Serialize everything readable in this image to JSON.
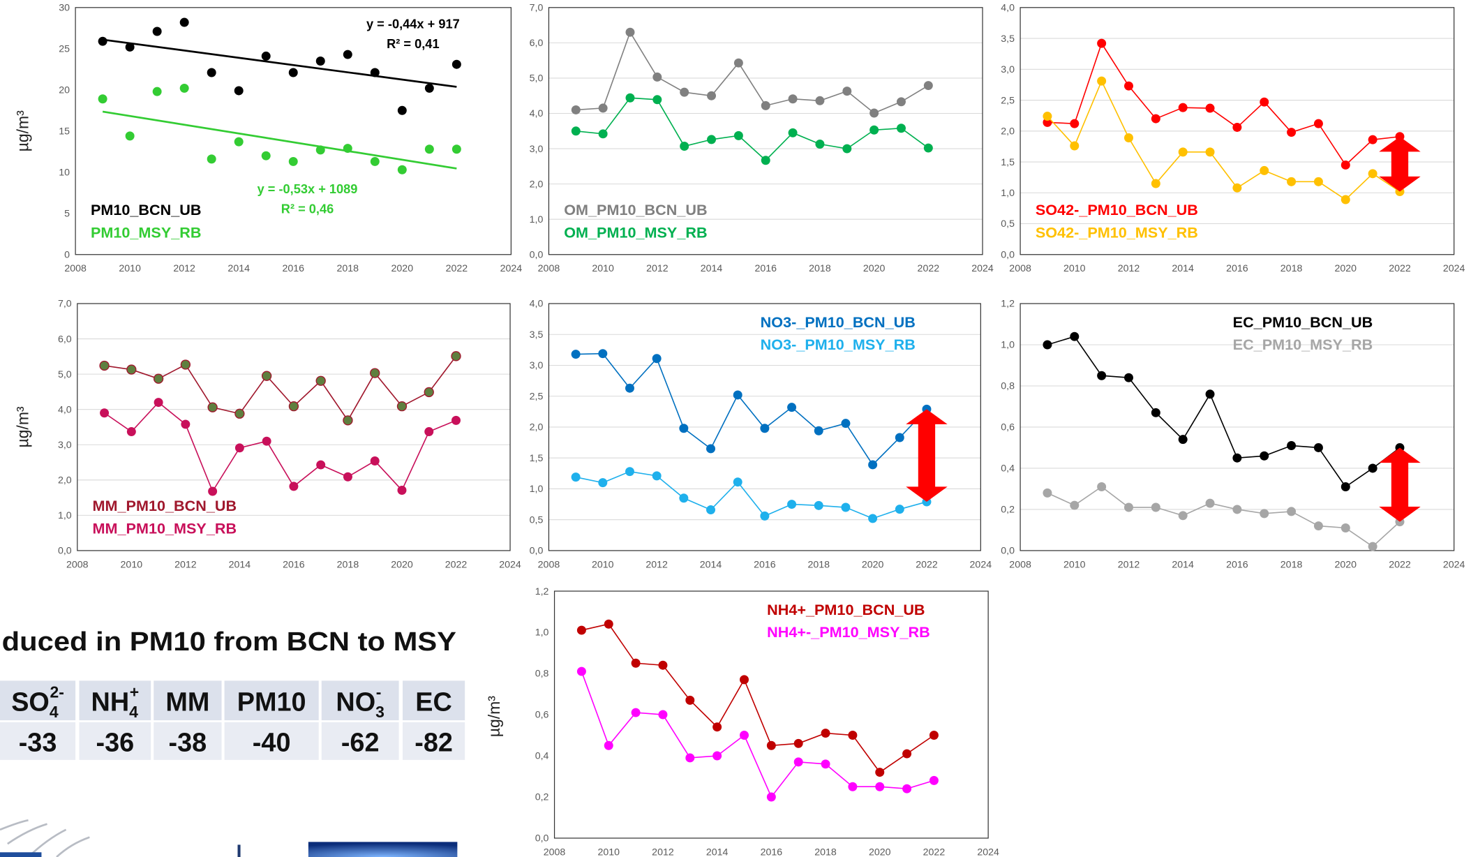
{
  "chart_data": [
    {
      "type": "scatter",
      "y_label": "µg/m³",
      "trendline": true,
      "grid": false,
      "legend_position": "lower left",
      "x": [
        2009,
        2010,
        2011,
        2012,
        2013,
        2014,
        2015,
        2016,
        2017,
        2018,
        2019,
        2020,
        2021,
        2022
      ],
      "xlim": [
        2008,
        2024
      ],
      "xticks": [
        2008,
        2010,
        2012,
        2014,
        2016,
        2018,
        2020,
        2022,
        2024
      ],
      "ylim": [
        0,
        30
      ],
      "yticks": [
        0,
        5,
        10,
        15,
        20,
        25,
        30
      ],
      "series": [
        {
          "name": "PM10_BCN_UB",
          "color": "#000000",
          "values": [
            25.9,
            25.2,
            27.1,
            28.2,
            22.1,
            19.9,
            24.1,
            22.1,
            23.5,
            24.3,
            22.1,
            17.5,
            20.2,
            23.1
          ]
        },
        {
          "name": "PM10_MSY_RB",
          "color": "#33cc33",
          "values": [
            18.9,
            14.4,
            19.8,
            20.2,
            11.6,
            13.7,
            12.0,
            11.3,
            12.7,
            12.9,
            11.3,
            10.3,
            12.8,
            12.8
          ]
        }
      ],
      "annotations": [
        {
          "text": "y = -0,44x + 917",
          "color": "#000000"
        },
        {
          "text": "R² = 0,41",
          "color": "#000000"
        },
        {
          "text": "y = -0,53x + 1089",
          "color": "#33cc33"
        },
        {
          "text": "R² = 0,46",
          "color": "#33cc33"
        }
      ]
    },
    {
      "type": "line",
      "grid": true,
      "legend_position": "lower left",
      "x": [
        2009,
        2010,
        2011,
        2012,
        2013,
        2014,
        2015,
        2016,
        2017,
        2018,
        2019,
        2020,
        2021,
        2022
      ],
      "xlim": [
        2008,
        2024
      ],
      "xticks": [
        2008,
        2010,
        2012,
        2014,
        2016,
        2018,
        2020,
        2022,
        2024
      ],
      "ylim": [
        0,
        7
      ],
      "yticks": [
        {
          "value": 0,
          "label": "0,0"
        },
        {
          "value": 1,
          "label": "1,0"
        },
        {
          "value": 2,
          "label": "2,0"
        },
        {
          "value": 3,
          "label": "3,0"
        },
        {
          "value": 4,
          "label": "4,0"
        },
        {
          "value": 5,
          "label": "5,0"
        },
        {
          "value": 6,
          "label": "6,0"
        },
        {
          "value": 7,
          "label": "7,0"
        }
      ],
      "series": [
        {
          "name": "OM_PM10_BCN_UB",
          "color": "#808080",
          "values": [
            4.1,
            4.15,
            6.3,
            5.03,
            4.6,
            4.5,
            5.43,
            4.22,
            4.41,
            4.36,
            4.63,
            4.01,
            4.33,
            4.79
          ]
        },
        {
          "name": "OM_PM10_MSY_RB",
          "color": "#00b050",
          "values": [
            3.5,
            3.42,
            4.44,
            4.39,
            3.07,
            3.26,
            3.37,
            2.67,
            3.45,
            3.13,
            3.0,
            3.53,
            3.58,
            3.02
          ]
        }
      ]
    },
    {
      "type": "line",
      "grid": true,
      "legend_position": "lower left",
      "arrow": true,
      "x": [
        2009,
        2010,
        2011,
        2012,
        2013,
        2014,
        2015,
        2016,
        2017,
        2018,
        2019,
        2020,
        2021,
        2022
      ],
      "xlim": [
        2008,
        2024
      ],
      "xticks": [
        2008,
        2010,
        2012,
        2014,
        2016,
        2018,
        2020,
        2022,
        2024
      ],
      "ylim": [
        0,
        4
      ],
      "yticks": [
        {
          "value": 0,
          "label": "0,0"
        },
        {
          "value": 0.5,
          "label": "0,5"
        },
        {
          "value": 1,
          "label": "1,0"
        },
        {
          "value": 1.5,
          "label": "1,5"
        },
        {
          "value": 2,
          "label": "2,0"
        },
        {
          "value": 2.5,
          "label": "2,5"
        },
        {
          "value": 3,
          "label": "3,0"
        },
        {
          "value": 3.5,
          "label": "3,5"
        },
        {
          "value": 4,
          "label": "4,0"
        }
      ],
      "series": [
        {
          "name": "SO42-_PM10_BCN_UB",
          "color": "#ff0000",
          "values": [
            2.14,
            2.12,
            3.42,
            2.73,
            2.2,
            2.38,
            2.37,
            2.06,
            2.47,
            1.98,
            2.12,
            1.45,
            1.86,
            1.91
          ]
        },
        {
          "name": "SO42-_PM10_MSY_RB",
          "color": "#ffc000",
          "values": [
            2.24,
            1.76,
            2.81,
            1.89,
            1.15,
            1.66,
            1.66,
            1.08,
            1.36,
            1.18,
            1.18,
            0.89,
            1.31,
            1.02
          ]
        }
      ]
    },
    {
      "type": "line",
      "y_label": "µg/m³",
      "grid": true,
      "legend_position": "lower left",
      "x": [
        2009,
        2010,
        2011,
        2012,
        2013,
        2014,
        2015,
        2016,
        2017,
        2018,
        2019,
        2020,
        2021,
        2022
      ],
      "xlim": [
        2008,
        2024
      ],
      "xticks": [
        2008,
        2010,
        2012,
        2014,
        2016,
        2018,
        2020,
        2022,
        2024
      ],
      "ylim": [
        0,
        7
      ],
      "yticks": [
        {
          "value": 0,
          "label": "0,0"
        },
        {
          "value": 1,
          "label": "1,0"
        },
        {
          "value": 2,
          "label": "2,0"
        },
        {
          "value": 3,
          "label": "3,0"
        },
        {
          "value": 4,
          "label": "4,0"
        },
        {
          "value": 5,
          "label": "5,0"
        },
        {
          "value": 6,
          "label": "6,0"
        },
        {
          "value": 7,
          "label": "7,0"
        }
      ],
      "series": [
        {
          "name": "MM_PM10_BCN_UB",
          "color": "#a0182d",
          "marker_color": "#5f7f3f",
          "values": [
            5.24,
            5.13,
            4.87,
            5.27,
            4.06,
            3.88,
            4.95,
            4.09,
            4.81,
            3.69,
            5.03,
            4.09,
            4.49,
            5.51
          ]
        },
        {
          "name": "MM_PM10_MSY_RB",
          "color": "#c8105a",
          "values": [
            3.9,
            3.37,
            4.2,
            3.58,
            1.68,
            2.91,
            3.1,
            1.82,
            2.43,
            2.09,
            2.54,
            1.71,
            3.37,
            3.69
          ]
        }
      ]
    },
    {
      "type": "line",
      "grid": true,
      "legend_position": "upper right",
      "arrow": true,
      "x": [
        2009,
        2010,
        2011,
        2012,
        2013,
        2014,
        2015,
        2016,
        2017,
        2018,
        2019,
        2020,
        2021,
        2022
      ],
      "xlim": [
        2008,
        2024
      ],
      "xticks": [
        2008,
        2010,
        2012,
        2014,
        2016,
        2018,
        2020,
        2022,
        2024
      ],
      "ylim": [
        0,
        4
      ],
      "yticks": [
        {
          "value": 0,
          "label": "0,0"
        },
        {
          "value": 0.5,
          "label": "0,5"
        },
        {
          "value": 1,
          "label": "1,0"
        },
        {
          "value": 1.5,
          "label": "1,5"
        },
        {
          "value": 2,
          "label": "2,0"
        },
        {
          "value": 2.5,
          "label": "2,5"
        },
        {
          "value": 3,
          "label": "3,0"
        },
        {
          "value": 3.5,
          "label": "3,5"
        },
        {
          "value": 4,
          "label": "4,0"
        }
      ],
      "series": [
        {
          "name": "NO3-_PM10_BCN_UB",
          "color": "#0070c0",
          "values": [
            3.18,
            3.19,
            2.63,
            3.11,
            1.98,
            1.65,
            2.52,
            1.98,
            2.32,
            1.94,
            2.06,
            1.39,
            1.83,
            2.29
          ]
        },
        {
          "name": "NO3-_PM10_MSY_RB",
          "color": "#1fb0ec",
          "values": [
            1.19,
            1.1,
            1.28,
            1.21,
            0.85,
            0.66,
            1.11,
            0.56,
            0.75,
            0.73,
            0.7,
            0.52,
            0.67,
            0.79
          ]
        }
      ]
    },
    {
      "type": "line",
      "grid": true,
      "legend_position": "upper right",
      "arrow": true,
      "x": [
        2009,
        2010,
        2011,
        2012,
        2013,
        2014,
        2015,
        2016,
        2017,
        2018,
        2019,
        2020,
        2021,
        2022
      ],
      "xlim": [
        2008,
        2024
      ],
      "xticks": [
        2008,
        2010,
        2012,
        2014,
        2016,
        2018,
        2020,
        2022,
        2024
      ],
      "ylim": [
        0,
        1.2
      ],
      "yticks": [
        {
          "value": 0,
          "label": "0,0"
        },
        {
          "value": 0.2,
          "label": "0,2"
        },
        {
          "value": 0.4,
          "label": "0,4"
        },
        {
          "value": 0.6,
          "label": "0,6"
        },
        {
          "value": 0.8,
          "label": "0,8"
        },
        {
          "value": 1,
          "label": "1,0"
        },
        {
          "value": 1.2,
          "label": "1,2"
        }
      ],
      "series": [
        {
          "name": "EC_PM10_BCN_UB",
          "color": "#000000",
          "values": [
            1.0,
            1.04,
            0.85,
            0.84,
            0.67,
            0.54,
            0.76,
            0.45,
            0.46,
            0.51,
            0.5,
            0.31,
            0.4,
            0.5
          ]
        },
        {
          "name": "EC_PM10_MSY_RB",
          "color": "#a6a6a6",
          "values": [
            0.28,
            0.22,
            0.31,
            0.21,
            0.21,
            0.17,
            0.23,
            0.2,
            0.18,
            0.19,
            0.12,
            0.11,
            0.02,
            0.14
          ]
        }
      ]
    },
    {
      "type": "line",
      "y_label": "µg/m³",
      "grid": false,
      "legend_position": "upper right",
      "x": [
        2009,
        2010,
        2011,
        2012,
        2013,
        2014,
        2015,
        2016,
        2017,
        2018,
        2019,
        2020,
        2021,
        2022
      ],
      "xlim": [
        2008,
        2024
      ],
      "xticks": [
        2008,
        2010,
        2012,
        2014,
        2016,
        2018,
        2020,
        2022,
        2024
      ],
      "ylim": [
        0,
        1.2
      ],
      "yticks": [
        {
          "value": 0,
          "label": "0,0"
        },
        {
          "value": 0.2,
          "label": "0,2"
        },
        {
          "value": 0.4,
          "label": "0,4"
        },
        {
          "value": 0.6,
          "label": "0,6"
        },
        {
          "value": 0.8,
          "label": "0,8"
        },
        {
          "value": 1,
          "label": "1,0"
        },
        {
          "value": 1.2,
          "label": "1,2"
        }
      ],
      "series": [
        {
          "name": "NH4+_PM10_BCN_UB",
          "color": "#c00000",
          "values": [
            1.01,
            1.04,
            0.85,
            0.84,
            0.67,
            0.54,
            0.77,
            0.45,
            0.46,
            0.51,
            0.5,
            0.32,
            0.41,
            0.5
          ]
        },
        {
          "name": "NH4+-_PM10_MSY_RB",
          "color": "#ff00ff",
          "values": [
            0.81,
            0.45,
            0.61,
            0.6,
            0.39,
            0.4,
            0.5,
            0.2,
            0.37,
            0.36,
            0.25,
            0.25,
            0.24,
            0.28
          ]
        }
      ]
    }
  ],
  "heading": "duced in PM10 from BCN to MSY",
  "table": {
    "header": [
      {
        "text": "SO",
        "sub": "4",
        "sup": "2-"
      },
      {
        "text": "NH",
        "sub": "4",
        "sup": "+"
      },
      {
        "text": "MM"
      },
      {
        "text": "PM10"
      },
      {
        "text": "NO",
        "sub": "3",
        "sup": "-"
      },
      {
        "text": "EC"
      }
    ],
    "row": [
      -33,
      -36,
      -38,
      -40,
      -62,
      -82
    ]
  }
}
